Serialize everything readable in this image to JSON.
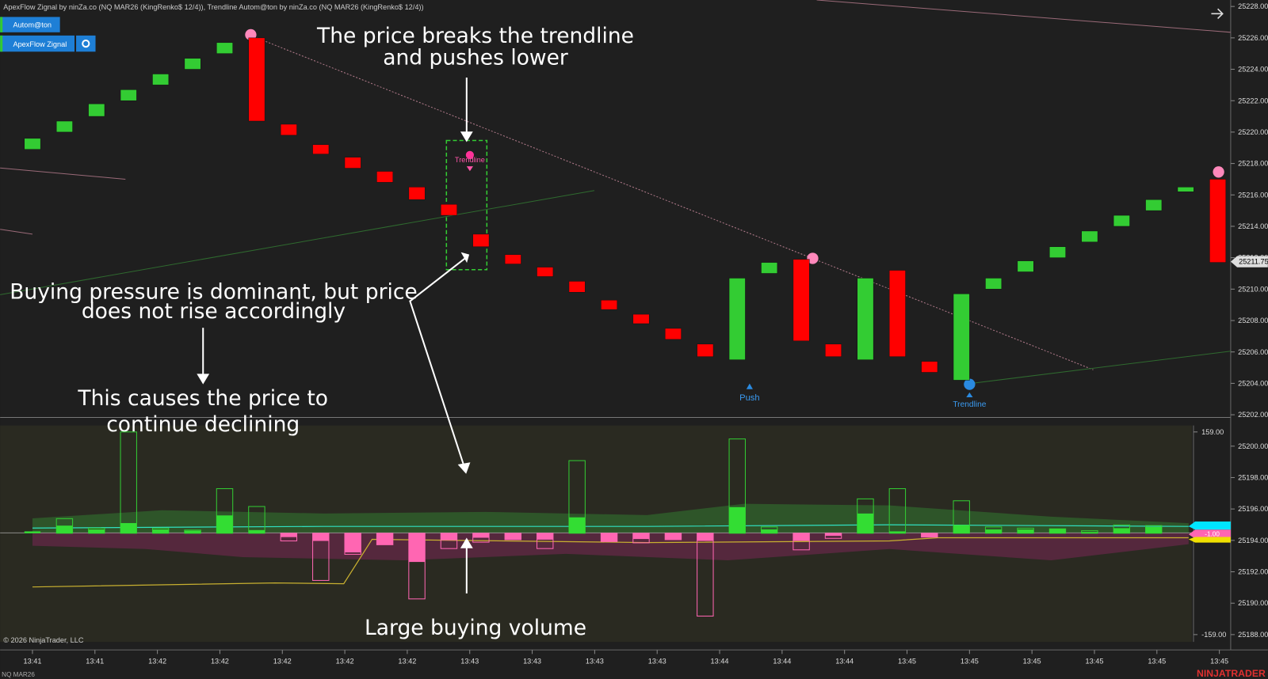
{
  "header": {
    "title": "ApexFlow Zignal by ninZa.co (NQ MAR26 (KingRenko$ 12/4)), Trendline Autom@ton by ninZa.co (NQ MAR26 (KingRenko$ 12/4))",
    "buttons": [
      "Autom@ton",
      "ApexFlow Zignal"
    ]
  },
  "annotations": {
    "breaks": [
      "The price breaks the trendline",
      "and pushes lower"
    ],
    "pressure": [
      "Buying pressure is dominant, but price",
      "does not rise accordingly"
    ],
    "causes": [
      "This causes the price to",
      "continue declining"
    ],
    "volume": "Large buying volume"
  },
  "signals": [
    "Trendline",
    "Push",
    "Trendline"
  ],
  "chart_data": {
    "type": "candlestick",
    "candles": [
      {
        "open": 25218.9,
        "close": 25219.6
      },
      {
        "open": 25220.0,
        "close": 25220.7
      },
      {
        "open": 25221.0,
        "close": 25221.8
      },
      {
        "open": 25222.0,
        "close": 25222.7
      },
      {
        "open": 25223.0,
        "close": 25223.7
      },
      {
        "open": 25224.0,
        "close": 25224.7
      },
      {
        "open": 25225.0,
        "close": 25225.7
      },
      {
        "open": 25226.0,
        "close": 25220.7
      },
      {
        "open": 25220.5,
        "close": 25219.8
      },
      {
        "open": 25219.2,
        "close": 25218.6
      },
      {
        "open": 25218.4,
        "close": 25217.7
      },
      {
        "open": 25217.5,
        "close": 25216.8
      },
      {
        "open": 25216.5,
        "close": 25215.7
      },
      {
        "open": 25215.4,
        "close": 25214.7
      },
      {
        "open": 25213.5,
        "close": 25212.7
      },
      {
        "open": 25212.2,
        "close": 25211.6
      },
      {
        "open": 25211.4,
        "close": 25210.8
      },
      {
        "open": 25210.5,
        "close": 25209.8
      },
      {
        "open": 25209.3,
        "close": 25208.7
      },
      {
        "open": 25208.4,
        "close": 25207.8
      },
      {
        "open": 25207.5,
        "close": 25206.8
      },
      {
        "open": 25206.5,
        "close": 25205.7
      },
      {
        "open": 25205.5,
        "close": 25210.7
      },
      {
        "open": 25211.0,
        "close": 25211.7
      },
      {
        "open": 25211.9,
        "close": 25206.7
      },
      {
        "open": 25206.5,
        "close": 25205.7
      },
      {
        "open": 25205.5,
        "close": 25210.7
      },
      {
        "open": 25211.2,
        "close": 25205.7
      },
      {
        "open": 25205.4,
        "close": 25204.7
      },
      {
        "open": 25204.2,
        "close": 25209.7
      },
      {
        "open": 25210.0,
        "close": 25210.7
      },
      {
        "open": 25211.1,
        "close": 25211.8
      },
      {
        "open": 25212.0,
        "close": 25212.7
      },
      {
        "open": 25213.0,
        "close": 25213.7
      },
      {
        "open": 25214.0,
        "close": 25214.7
      },
      {
        "open": 25215.0,
        "close": 25215.7
      },
      {
        "open": 25216.2,
        "close": 25216.5
      },
      {
        "open": 25217.0,
        "close": 25211.7
      }
    ],
    "colors": {
      "up": "#33cc33",
      "down": "#ff0000"
    },
    "ylim": [
      25188,
      25228
    ],
    "yticks": [
      {
        "value": 25228,
        "label": "25228.00"
      },
      {
        "value": 25226,
        "label": "25226.00"
      },
      {
        "value": 25224,
        "label": "25224.00"
      },
      {
        "value": 25222,
        "label": "25222.00"
      },
      {
        "value": 25220,
        "label": "25220.00"
      },
      {
        "value": 25218,
        "label": "25218.00"
      },
      {
        "value": 25216,
        "label": "25216.00"
      },
      {
        "value": 25214,
        "label": "25214.00"
      },
      {
        "value": 25212,
        "label": "25212.00"
      },
      {
        "value": 25210,
        "label": "25210.00"
      },
      {
        "value": 25208,
        "label": "25208.00"
      },
      {
        "value": 25206,
        "label": "25206.00"
      },
      {
        "value": 25204,
        "label": "25204.00"
      },
      {
        "value": 25202,
        "label": "25202.00"
      },
      {
        "value": 25200,
        "label": "25200.00"
      },
      {
        "value": 25198,
        "label": "25198.00"
      },
      {
        "value": 25196,
        "label": "25196.00"
      },
      {
        "value": 25194,
        "label": "25194.00"
      },
      {
        "value": 25192,
        "label": "25192.00"
      },
      {
        "value": 25190,
        "label": "25190.00"
      },
      {
        "value": 25188,
        "label": "25188.00"
      }
    ],
    "price_tag": {
      "value": 25211.75,
      "label": "25211.75"
    },
    "time_labels": [
      "13:41",
      "13:41",
      "13:42",
      "13:42",
      "13:42",
      "13:42",
      "13:42",
      "13:43",
      "13:43",
      "13:43",
      "13:43",
      "13:44",
      "13:44",
      "13:44",
      "13:45",
      "13:45",
      "13:45",
      "13:45",
      "13:45",
      "13:45"
    ],
    "volume": {
      "totals": [
        0,
        23,
        8,
        159,
        8,
        5,
        70,
        42,
        -12,
        -74,
        -33,
        -18,
        -103,
        -24,
        -14,
        -10,
        -24,
        114,
        -13,
        -15,
        -10,
        -130,
        148,
        10,
        -26,
        -8,
        54,
        70,
        -6,
        51,
        10,
        8,
        7,
        4,
        13,
        12,
        0,
        0
      ],
      "deltas": [
        3,
        12,
        6,
        16,
        6,
        4,
        28,
        5,
        -6,
        -12,
        -30,
        -18,
        -45,
        -11,
        -7,
        -10,
        -10,
        25,
        -13,
        -9,
        -10,
        -12,
        41,
        6,
        -12,
        -4,
        31,
        3,
        -6,
        13,
        6,
        6,
        7,
        2,
        8,
        10,
        0,
        0
      ],
      "ylim": [
        -159,
        159
      ],
      "yticks": [
        {
          "value": 159,
          "label": "159.00"
        },
        {
          "value": -159,
          "label": "-159.00"
        }
      ],
      "marker": "-1.00"
    }
  },
  "footer": {
    "copyright": "© 2026 NinjaTrader, LLC",
    "instrument": "NQ MAR26",
    "brand": "NINJATRADER"
  }
}
